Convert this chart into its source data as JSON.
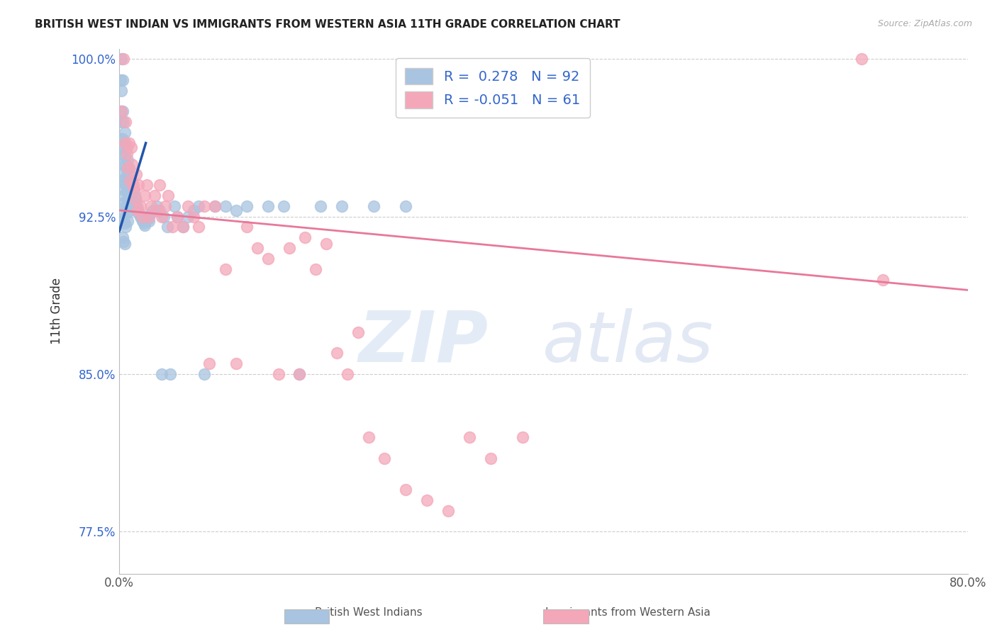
{
  "title": "BRITISH WEST INDIAN VS IMMIGRANTS FROM WESTERN ASIA 11TH GRADE CORRELATION CHART",
  "source": "Source: ZipAtlas.com",
  "xlabel": "",
  "ylabel": "11th Grade",
  "xlim": [
    0.0,
    0.8
  ],
  "ylim": [
    0.755,
    1.005
  ],
  "xticks": [
    0.0,
    0.1,
    0.2,
    0.3,
    0.4,
    0.5,
    0.6,
    0.7,
    0.8
  ],
  "xticklabels": [
    "0.0%",
    "",
    "",
    "",
    "",
    "",
    "",
    "",
    "80.0%"
  ],
  "yticks": [
    0.775,
    0.85,
    0.925,
    1.0
  ],
  "yticklabels": [
    "77.5%",
    "85.0%",
    "92.5%",
    "100.0%"
  ],
  "blue_R": 0.278,
  "blue_N": 92,
  "pink_R": -0.051,
  "pink_N": 61,
  "blue_color": "#a8c4e0",
  "pink_color": "#f4a7b9",
  "blue_line_color": "#2255aa",
  "pink_line_color": "#e8789a",
  "legend_label_blue": "British West Indians",
  "legend_label_pink": "Immigrants from Western Asia",
  "blue_line_x": [
    0.0,
    0.025
  ],
  "blue_line_y": [
    0.918,
    0.96
  ],
  "pink_line_x": [
    0.0,
    0.8
  ],
  "pink_line_y": [
    0.928,
    0.89
  ],
  "blue_scatter_x": [
    0.001,
    0.001,
    0.001,
    0.002,
    0.002,
    0.002,
    0.002,
    0.002,
    0.003,
    0.003,
    0.003,
    0.003,
    0.003,
    0.003,
    0.003,
    0.004,
    0.004,
    0.004,
    0.004,
    0.004,
    0.004,
    0.005,
    0.005,
    0.005,
    0.005,
    0.005,
    0.005,
    0.006,
    0.006,
    0.006,
    0.006,
    0.006,
    0.007,
    0.007,
    0.007,
    0.007,
    0.008,
    0.008,
    0.008,
    0.008,
    0.009,
    0.009,
    0.009,
    0.01,
    0.01,
    0.01,
    0.011,
    0.011,
    0.012,
    0.012,
    0.013,
    0.013,
    0.014,
    0.015,
    0.016,
    0.017,
    0.018,
    0.019,
    0.02,
    0.021,
    0.022,
    0.023,
    0.024,
    0.025,
    0.027,
    0.028,
    0.03,
    0.032,
    0.035,
    0.038,
    0.04,
    0.042,
    0.045,
    0.048,
    0.052,
    0.055,
    0.06,
    0.065,
    0.07,
    0.075,
    0.08,
    0.09,
    0.1,
    0.11,
    0.12,
    0.14,
    0.155,
    0.17,
    0.19,
    0.21,
    0.24,
    0.27
  ],
  "blue_scatter_y": [
    0.99,
    0.975,
    0.962,
    1.0,
    0.985,
    0.97,
    0.955,
    0.942,
    0.99,
    0.975,
    0.962,
    0.95,
    0.938,
    0.927,
    0.915,
    0.97,
    0.958,
    0.946,
    0.935,
    0.924,
    0.913,
    0.965,
    0.954,
    0.943,
    0.932,
    0.922,
    0.912,
    0.96,
    0.95,
    0.94,
    0.93,
    0.92,
    0.958,
    0.947,
    0.937,
    0.927,
    0.952,
    0.942,
    0.933,
    0.923,
    0.948,
    0.939,
    0.93,
    0.945,
    0.936,
    0.928,
    0.942,
    0.934,
    0.94,
    0.932,
    0.938,
    0.93,
    0.936,
    0.934,
    0.931,
    0.929,
    0.927,
    0.926,
    0.925,
    0.924,
    0.923,
    0.922,
    0.921,
    0.925,
    0.924,
    0.923,
    0.927,
    0.928,
    0.93,
    0.928,
    0.85,
    0.925,
    0.92,
    0.85,
    0.93,
    0.925,
    0.92,
    0.925,
    0.928,
    0.93,
    0.85,
    0.93,
    0.93,
    0.928,
    0.93,
    0.93,
    0.93,
    0.85,
    0.93,
    0.93,
    0.93,
    0.93
  ],
  "pink_scatter_x": [
    0.002,
    0.004,
    0.005,
    0.006,
    0.007,
    0.008,
    0.009,
    0.01,
    0.011,
    0.012,
    0.013,
    0.014,
    0.015,
    0.016,
    0.017,
    0.018,
    0.02,
    0.022,
    0.024,
    0.026,
    0.028,
    0.03,
    0.033,
    0.036,
    0.038,
    0.04,
    0.043,
    0.046,
    0.05,
    0.055,
    0.06,
    0.065,
    0.07,
    0.075,
    0.08,
    0.085,
    0.09,
    0.1,
    0.11,
    0.12,
    0.13,
    0.14,
    0.15,
    0.16,
    0.17,
    0.175,
    0.185,
    0.195,
    0.205,
    0.215,
    0.225,
    0.235,
    0.25,
    0.27,
    0.29,
    0.31,
    0.33,
    0.35,
    0.38,
    0.7,
    0.72
  ],
  "pink_scatter_y": [
    0.975,
    1.0,
    0.96,
    0.97,
    0.955,
    0.948,
    0.96,
    0.942,
    0.958,
    0.95,
    0.94,
    0.938,
    0.933,
    0.945,
    0.928,
    0.94,
    0.93,
    0.925,
    0.935,
    0.94,
    0.925,
    0.93,
    0.935,
    0.928,
    0.94,
    0.925,
    0.93,
    0.935,
    0.92,
    0.925,
    0.92,
    0.93,
    0.925,
    0.92,
    0.93,
    0.855,
    0.93,
    0.9,
    0.855,
    0.92,
    0.91,
    0.905,
    0.85,
    0.91,
    0.85,
    0.915,
    0.9,
    0.912,
    0.86,
    0.85,
    0.87,
    0.82,
    0.81,
    0.795,
    0.79,
    0.785,
    0.82,
    0.81,
    0.82,
    1.0,
    0.895
  ]
}
